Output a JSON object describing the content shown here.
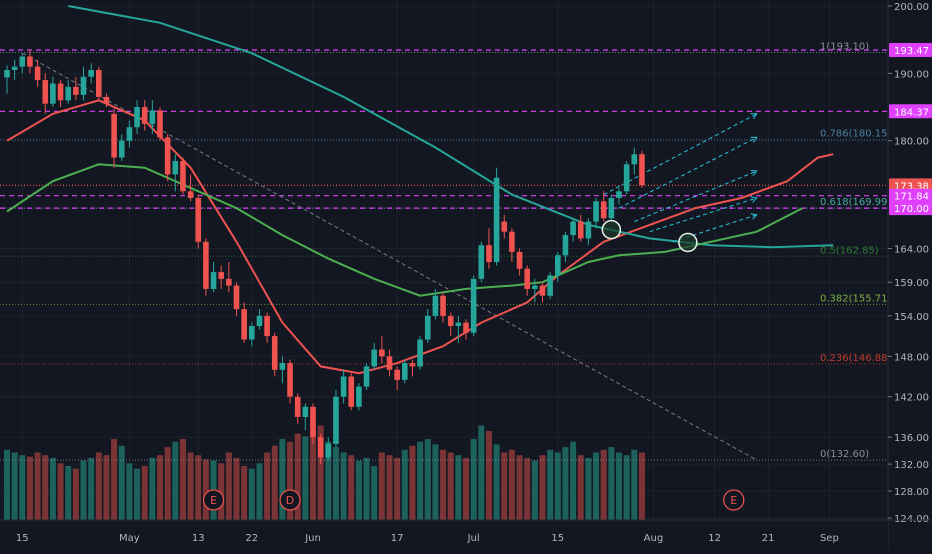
{
  "chart_data": {
    "type": "candlestick",
    "price_axis": {
      "ticks": [
        "200.00",
        "190.00",
        "180.00",
        "164.00",
        "159.00",
        "154.00",
        "148.00",
        "142.00",
        "136.00",
        "132.00",
        "128.00",
        "124.00"
      ],
      "range": [
        124,
        200
      ]
    },
    "time_axis": {
      "labels": [
        {
          "text": "15",
          "i": 2
        },
        {
          "text": "May",
          "i": 16
        },
        {
          "text": "13",
          "i": 25
        },
        {
          "text": "22",
          "i": 32
        },
        {
          "text": "Jun",
          "i": 40
        },
        {
          "text": "17",
          "i": 51
        },
        {
          "text": "Jul",
          "i": 61
        },
        {
          "text": "15",
          "i": 72
        },
        {
          "text": "Aug",
          "i": 84.5
        },
        {
          "text": "12",
          "i": 92.5
        },
        {
          "text": "21",
          "i": 99.5
        },
        {
          "text": "Sep",
          "i": 107.5
        }
      ]
    },
    "price_badges": [
      {
        "text": "193.47",
        "price": 193.47,
        "color": "#e040fb"
      },
      {
        "text": "184.37",
        "price": 184.37,
        "color": "#e040fb"
      },
      {
        "text": "173.38",
        "price": 173.38,
        "color": "#ef5350"
      },
      {
        "text": "171.84",
        "price": 171.84,
        "color": "#e040fb"
      },
      {
        "text": "170.00",
        "price": 170.0,
        "color": "#e040fb"
      }
    ],
    "fib_levels": [
      {
        "text": "1(193.10)",
        "price": 193.1,
        "color": "#8a8f9c"
      },
      {
        "text": "0.786(180.15)",
        "price": 180.15,
        "color": "#4a7f9c"
      },
      {
        "text": "0.618(169.99)",
        "price": 169.99,
        "color": "#4ba6a0"
      },
      {
        "text": "0.5(162.85)",
        "price": 162.85,
        "color": "#2e7d32"
      },
      {
        "text": "0.382(155.71)",
        "price": 155.71,
        "color": "#7cb342"
      },
      {
        "text": "0.236(146.88)",
        "price": 146.88,
        "color": "#c0392b"
      },
      {
        "text": "0(132.60)",
        "price": 132.6,
        "color": "#8a8f9c"
      }
    ],
    "event_markers": [
      {
        "text": "E",
        "i": 27
      },
      {
        "text": "D",
        "i": 37
      },
      {
        "text": "E",
        "i": 95
      }
    ],
    "candles": [
      [
        189.4,
        191.2,
        187.0,
        190.5
      ],
      [
        190.5,
        192.0,
        189.0,
        191.0
      ],
      [
        191.0,
        193.0,
        190.0,
        192.5
      ],
      [
        192.5,
        193.5,
        190.0,
        191.0
      ],
      [
        191.0,
        192.0,
        188.0,
        189.0
      ],
      [
        189.0,
        190.0,
        184.0,
        185.5
      ],
      [
        185.5,
        189.5,
        185.0,
        188.5
      ],
      [
        188.5,
        189.0,
        185.0,
        186.0
      ],
      [
        186.0,
        189.0,
        185.5,
        188.0
      ],
      [
        188.0,
        189.5,
        186.0,
        186.8
      ],
      [
        186.8,
        191.0,
        186.0,
        189.5
      ],
      [
        189.5,
        191.5,
        188.5,
        190.5
      ],
      [
        190.5,
        191.0,
        186.0,
        186.5
      ],
      [
        186.5,
        187.0,
        185.0,
        185.5
      ],
      [
        184.0,
        185.0,
        176.0,
        177.5
      ],
      [
        177.5,
        181.0,
        177.0,
        180.0
      ],
      [
        180.0,
        183.0,
        179.0,
        182.0
      ],
      [
        182.0,
        186.0,
        181.0,
        185.0
      ],
      [
        185.0,
        186.0,
        181.5,
        182.5
      ],
      [
        182.5,
        186.0,
        181.0,
        184.5
      ],
      [
        184.5,
        185.0,
        180.0,
        180.5
      ],
      [
        180.5,
        181.0,
        174.0,
        175.0
      ],
      [
        175.0,
        178.0,
        172.5,
        177.0
      ],
      [
        177.0,
        177.5,
        172.0,
        172.5
      ],
      [
        172.5,
        175.0,
        171.0,
        171.5
      ],
      [
        171.5,
        172.0,
        164.0,
        165.0
      ],
      [
        165.0,
        165.5,
        157.0,
        158.0
      ],
      [
        158.0,
        162.0,
        157.5,
        160.5
      ],
      [
        160.5,
        161.5,
        158.0,
        159.5
      ],
      [
        159.5,
        162.0,
        157.5,
        158.5
      ],
      [
        158.5,
        159.0,
        154.0,
        155.0
      ],
      [
        155.0,
        156.0,
        150.0,
        150.5
      ],
      [
        150.5,
        153.0,
        149.5,
        152.5
      ],
      [
        152.5,
        155.0,
        152.0,
        154.0
      ],
      [
        154.0,
        154.5,
        150.0,
        151.0
      ],
      [
        151.0,
        151.5,
        145.0,
        146.0
      ],
      [
        146.0,
        148.0,
        144.0,
        147.0
      ],
      [
        147.0,
        147.5,
        141.0,
        142.0
      ],
      [
        142.0,
        142.5,
        138.0,
        139.0
      ],
      [
        139.0,
        141.0,
        137.0,
        140.5
      ],
      [
        140.5,
        141.0,
        135.0,
        136.0
      ],
      [
        136.0,
        136.5,
        132.0,
        133.0
      ],
      [
        133.0,
        136.0,
        132.6,
        135.0
      ],
      [
        135.0,
        143.0,
        134.5,
        142.0
      ],
      [
        142.0,
        146.0,
        141.0,
        145.0
      ],
      [
        145.0,
        145.5,
        140.0,
        140.5
      ],
      [
        140.5,
        144.0,
        140.0,
        143.5
      ],
      [
        143.5,
        147.0,
        143.0,
        146.5
      ],
      [
        146.5,
        150.0,
        146.0,
        149.0
      ],
      [
        149.0,
        151.0,
        147.0,
        148.0
      ],
      [
        148.0,
        149.0,
        145.0,
        146.0
      ],
      [
        146.0,
        146.5,
        143.0,
        144.5
      ],
      [
        144.5,
        147.5,
        144.0,
        147.0
      ],
      [
        147.0,
        147.5,
        145.0,
        146.5
      ],
      [
        146.5,
        151.0,
        146.0,
        150.5
      ],
      [
        150.5,
        155.0,
        150.0,
        154.0
      ],
      [
        154.0,
        158.0,
        153.5,
        157.0
      ],
      [
        157.0,
        157.5,
        153.0,
        154.0
      ],
      [
        154.0,
        154.5,
        151.0,
        152.5
      ],
      [
        152.5,
        154.0,
        150.0,
        153.0
      ],
      [
        153.0,
        153.5,
        150.5,
        151.5
      ],
      [
        151.5,
        160.0,
        151.0,
        159.5
      ],
      [
        159.5,
        165.0,
        159.0,
        164.5
      ],
      [
        164.5,
        167.0,
        161.0,
        162.0
      ],
      [
        162.0,
        176.0,
        161.5,
        174.5
      ],
      [
        168.0,
        169.0,
        165.5,
        166.5
      ],
      [
        166.5,
        167.0,
        162.0,
        163.5
      ],
      [
        163.5,
        164.0,
        160.0,
        161.0
      ],
      [
        161.0,
        161.5,
        157.0,
        158.0
      ],
      [
        158.0,
        159.5,
        156.0,
        158.5
      ],
      [
        158.5,
        159.0,
        156.0,
        157.0
      ],
      [
        157.0,
        160.5,
        156.5,
        160.0
      ],
      [
        160.0,
        163.5,
        159.0,
        163.0
      ],
      [
        163.0,
        166.5,
        162.0,
        166.0
      ],
      [
        166.0,
        168.5,
        165.0,
        168.0
      ],
      [
        168.0,
        169.0,
        165.0,
        165.5
      ],
      [
        165.5,
        168.5,
        164.5,
        168.0
      ],
      [
        168.0,
        171.5,
        167.0,
        171.0
      ],
      [
        171.0,
        172.5,
        168.0,
        168.5
      ],
      [
        168.5,
        172.0,
        168.0,
        171.5
      ],
      [
        171.5,
        173.0,
        170.5,
        172.5
      ],
      [
        172.5,
        177.0,
        172.0,
        176.5
      ],
      [
        176.5,
        179.0,
        175.0,
        178.0
      ],
      [
        178.0,
        178.5,
        173.0,
        173.4
      ]
    ],
    "volume": [
      52,
      50,
      48,
      47,
      50,
      48,
      46,
      42,
      40,
      38,
      44,
      46,
      50,
      48,
      60,
      55,
      42,
      38,
      40,
      46,
      48,
      54,
      58,
      60,
      50,
      48,
      45,
      44,
      42,
      50,
      46,
      40,
      38,
      42,
      50,
      55,
      60,
      58,
      64,
      62,
      66,
      70,
      58,
      54,
      50,
      48,
      44,
      46,
      40,
      50,
      48,
      46,
      52,
      55,
      58,
      60,
      56,
      52,
      50,
      48,
      46,
      60,
      70,
      66,
      56,
      50,
      52,
      48,
      46,
      44,
      48,
      52,
      50,
      54,
      58,
      48,
      46,
      50,
      52,
      54,
      50,
      48,
      52,
      50
    ],
    "series": [
      {
        "name": "ma-red",
        "color": "#ef5350",
        "points": [
          [
            0,
            180.0
          ],
          [
            6,
            184.0
          ],
          [
            12,
            186.0
          ],
          [
            18,
            183.0
          ],
          [
            24,
            176.0
          ],
          [
            30,
            165.0
          ],
          [
            36,
            153.0
          ],
          [
            41,
            146.5
          ],
          [
            46,
            145.5
          ],
          [
            51,
            147.0
          ],
          [
            57,
            149.5
          ],
          [
            62,
            153.0
          ],
          [
            68,
            156.0
          ],
          [
            72,
            160.0
          ],
          [
            78,
            165.0
          ],
          [
            84,
            167.5
          ],
          [
            90,
            170.0
          ],
          [
            96,
            171.5
          ],
          [
            102,
            174.0
          ],
          [
            106,
            177.5
          ],
          [
            108,
            178.0
          ]
        ]
      },
      {
        "name": "ma-teal",
        "color": "#26a69a",
        "points": [
          [
            8,
            200.0
          ],
          [
            20,
            197.5
          ],
          [
            32,
            193.0
          ],
          [
            44,
            186.5
          ],
          [
            56,
            179.0
          ],
          [
            66,
            172.0
          ],
          [
            76,
            167.5
          ],
          [
            84,
            165.5
          ],
          [
            92,
            164.5
          ],
          [
            100,
            164.2
          ],
          [
            108,
            164.5
          ]
        ]
      },
      {
        "name": "ma-green",
        "color": "#4caf50",
        "points": [
          [
            0,
            169.5
          ],
          [
            6,
            174.0
          ],
          [
            12,
            176.5
          ],
          [
            18,
            176.0
          ],
          [
            24,
            173.0
          ],
          [
            30,
            170.0
          ],
          [
            36,
            166.0
          ],
          [
            42,
            162.5
          ],
          [
            48,
            159.5
          ],
          [
            54,
            157.0
          ],
          [
            60,
            158.0
          ],
          [
            66,
            158.5
          ],
          [
            70,
            159.0
          ],
          [
            76,
            162.0
          ],
          [
            80,
            163.0
          ],
          [
            86,
            163.5
          ],
          [
            92,
            165.0
          ],
          [
            98,
            166.5
          ],
          [
            104,
            170.0
          ]
        ]
      }
    ],
    "proj_arrows": [
      [
        78,
        172.0,
        98,
        184.0
      ],
      [
        80,
        170.0,
        98,
        180.5
      ],
      [
        82,
        168.0,
        98,
        175.5
      ],
      [
        84,
        166.5,
        98,
        171.5
      ],
      [
        87,
        165.0,
        98,
        169.0
      ]
    ],
    "trendline": [
      [
        2,
        193.0
      ],
      [
        98,
        132.6
      ]
    ],
    "circles": [
      {
        "i": 79,
        "p": 166.8
      },
      {
        "i": 89,
        "p": 164.9
      }
    ]
  }
}
